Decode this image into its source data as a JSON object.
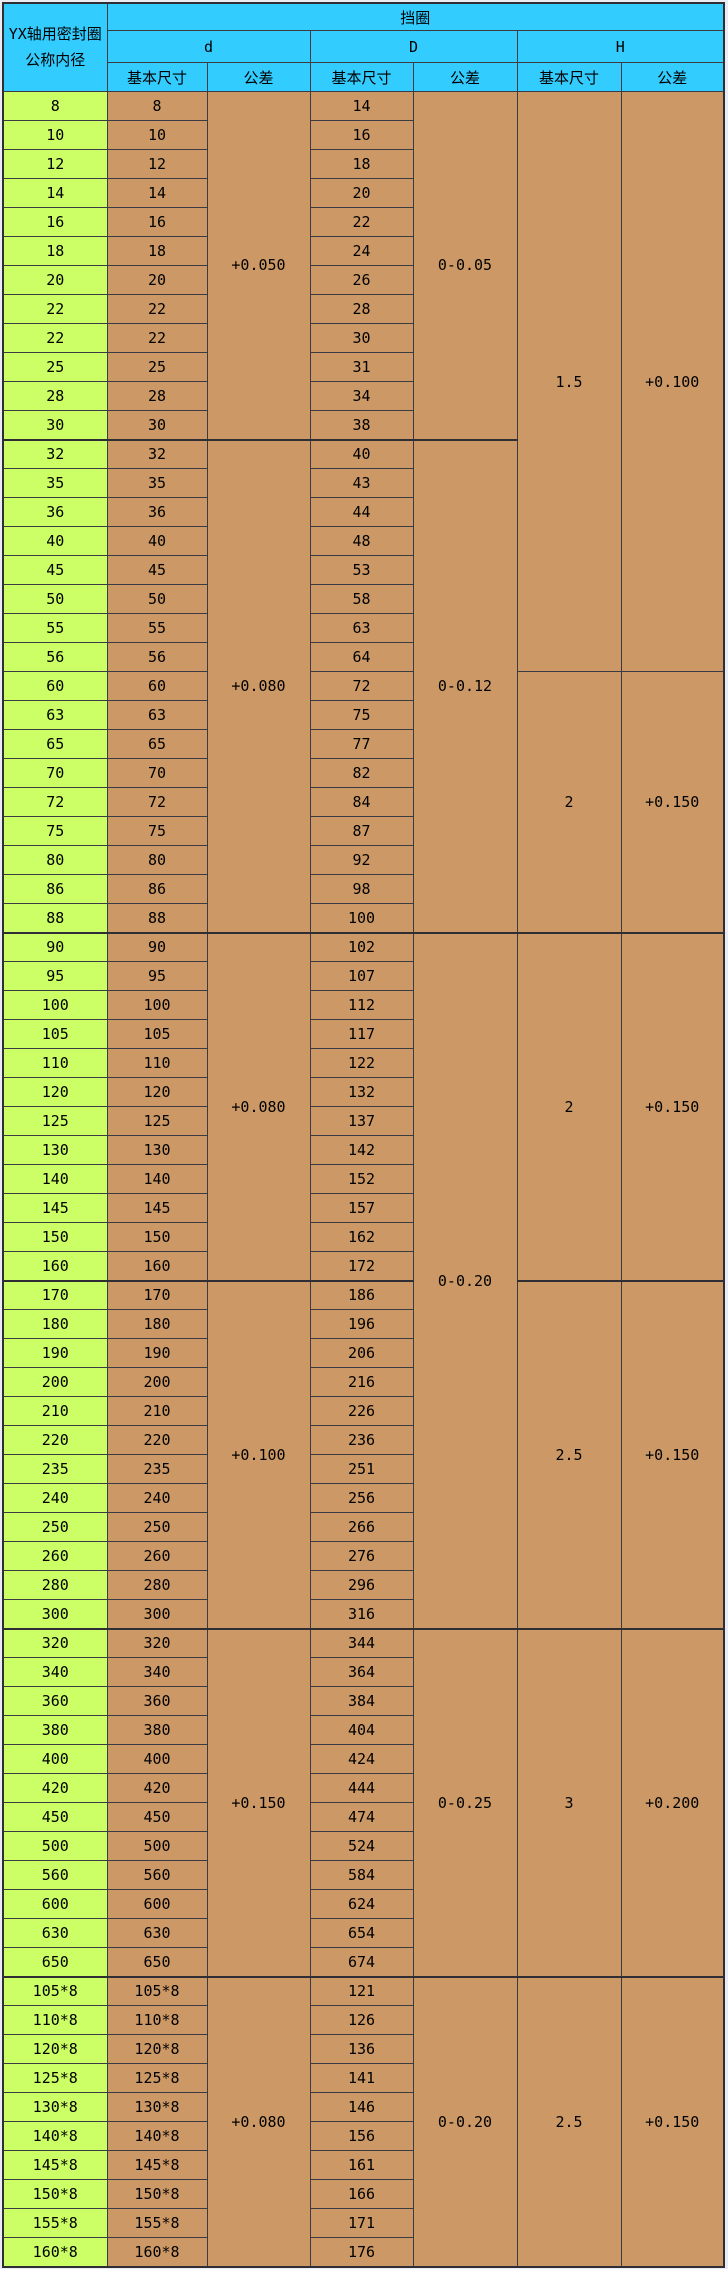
{
  "page": {
    "background": "#E9EDF3"
  },
  "colors": {
    "header_bg": "#33CCFF",
    "nominal_col_bg": "#CCFF66",
    "data_cell_bg": "#CC9966",
    "border": "#3B3B43",
    "text": "#000000"
  },
  "table": {
    "corner_header_line1": "YX轴用密封圈",
    "corner_header_line2": "公称内径",
    "span_header": "挡圈",
    "section_headers": [
      "d",
      "D",
      "H"
    ],
    "sub_headers": [
      "基本尺寸",
      "公差",
      "基本尺寸",
      "公差",
      "基本尺寸",
      "公差"
    ],
    "rows": [
      [
        "8",
        "8",
        "14"
      ],
      [
        "10",
        "10",
        "16"
      ],
      [
        "12",
        "12",
        "18"
      ],
      [
        "14",
        "14",
        "20"
      ],
      [
        "16",
        "16",
        "22"
      ],
      [
        "18",
        "18",
        "24"
      ],
      [
        "20",
        "20",
        "26"
      ],
      [
        "22",
        "22",
        "28"
      ],
      [
        "22",
        "22",
        "30"
      ],
      [
        "25",
        "25",
        "31"
      ],
      [
        "28",
        "28",
        "34"
      ],
      [
        "30",
        "30",
        "38"
      ],
      [
        "32",
        "32",
        "40"
      ],
      [
        "35",
        "35",
        "43"
      ],
      [
        "36",
        "36",
        "44"
      ],
      [
        "40",
        "40",
        "48"
      ],
      [
        "45",
        "45",
        "53"
      ],
      [
        "50",
        "50",
        "58"
      ],
      [
        "55",
        "55",
        "63"
      ],
      [
        "56",
        "56",
        "64"
      ],
      [
        "60",
        "60",
        "72"
      ],
      [
        "63",
        "63",
        "75"
      ],
      [
        "65",
        "65",
        "77"
      ],
      [
        "70",
        "70",
        "82"
      ],
      [
        "72",
        "72",
        "84"
      ],
      [
        "75",
        "75",
        "87"
      ],
      [
        "80",
        "80",
        "92"
      ],
      [
        "86",
        "86",
        "98"
      ],
      [
        "88",
        "88",
        "100"
      ],
      [
        "90",
        "90",
        "102"
      ],
      [
        "95",
        "95",
        "107"
      ],
      [
        "100",
        "100",
        "112"
      ],
      [
        "105",
        "105",
        "117"
      ],
      [
        "110",
        "110",
        "122"
      ],
      [
        "120",
        "120",
        "132"
      ],
      [
        "125",
        "125",
        "137"
      ],
      [
        "130",
        "130",
        "142"
      ],
      [
        "140",
        "140",
        "152"
      ],
      [
        "145",
        "145",
        "157"
      ],
      [
        "150",
        "150",
        "162"
      ],
      [
        "160",
        "160",
        "172"
      ],
      [
        "170",
        "170",
        "186"
      ],
      [
        "180",
        "180",
        "196"
      ],
      [
        "190",
        "190",
        "206"
      ],
      [
        "200",
        "200",
        "216"
      ],
      [
        "210",
        "210",
        "226"
      ],
      [
        "220",
        "220",
        "236"
      ],
      [
        "235",
        "235",
        "251"
      ],
      [
        "240",
        "240",
        "256"
      ],
      [
        "250",
        "250",
        "266"
      ],
      [
        "260",
        "260",
        "276"
      ],
      [
        "280",
        "280",
        "296"
      ],
      [
        "300",
        "300",
        "316"
      ],
      [
        "320",
        "320",
        "344"
      ],
      [
        "340",
        "340",
        "364"
      ],
      [
        "360",
        "360",
        "384"
      ],
      [
        "380",
        "380",
        "404"
      ],
      [
        "400",
        "400",
        "424"
      ],
      [
        "420",
        "420",
        "444"
      ],
      [
        "450",
        "450",
        "474"
      ],
      [
        "500",
        "500",
        "524"
      ],
      [
        "560",
        "560",
        "584"
      ],
      [
        "600",
        "600",
        "624"
      ],
      [
        "630",
        "630",
        "654"
      ],
      [
        "650",
        "650",
        "674"
      ],
      [
        "105*8",
        "105*8",
        "121"
      ],
      [
        "110*8",
        "110*8",
        "126"
      ],
      [
        "120*8",
        "120*8",
        "136"
      ],
      [
        "125*8",
        "125*8",
        "141"
      ],
      [
        "130*8",
        "130*8",
        "146"
      ],
      [
        "140*8",
        "140*8",
        "156"
      ],
      [
        "145*8",
        "145*8",
        "161"
      ],
      [
        "150*8",
        "150*8",
        "166"
      ],
      [
        "155*8",
        "155*8",
        "171"
      ],
      [
        "160*8",
        "160*8",
        "176"
      ]
    ],
    "d_tolerance_spans": [
      {
        "start": 1,
        "rows": 12,
        "value": "+0.050"
      },
      {
        "start": 13,
        "rows": 17,
        "value": "+0.080"
      },
      {
        "start": 30,
        "rows": 12,
        "value": "+0.080"
      },
      {
        "start": 42,
        "rows": 12,
        "value": "+0.100"
      },
      {
        "start": 54,
        "rows": 12,
        "value": "+0.150"
      },
      {
        "start": 66,
        "rows": 10,
        "value": "+0.080"
      }
    ],
    "D_tolerance_spans": [
      {
        "start": 1,
        "rows": 12,
        "value": "0-0.05"
      },
      {
        "start": 13,
        "rows": 17,
        "value": "0-0.12"
      },
      {
        "start": 30,
        "rows": 24,
        "value": "0-0.20"
      },
      {
        "start": 54,
        "rows": 12,
        "value": "0-0.25"
      },
      {
        "start": 66,
        "rows": 10,
        "value": "0-0.20"
      }
    ],
    "h_spans": [
      {
        "start": 1,
        "rows": 20,
        "size": "1.5",
        "tol": "+0.100"
      },
      {
        "start": 21,
        "rows": 9,
        "size": "2",
        "tol": "+0.150"
      },
      {
        "start": 30,
        "rows": 12,
        "size": "2",
        "tol": "+0.150"
      },
      {
        "start": 42,
        "rows": 12,
        "size": "2.5",
        "tol": "+0.150"
      },
      {
        "start": 54,
        "rows": 12,
        "size": "3",
        "tol": "+0.200"
      },
      {
        "start": 66,
        "rows": 10,
        "size": "2.5",
        "tol": "+0.150"
      }
    ]
  }
}
